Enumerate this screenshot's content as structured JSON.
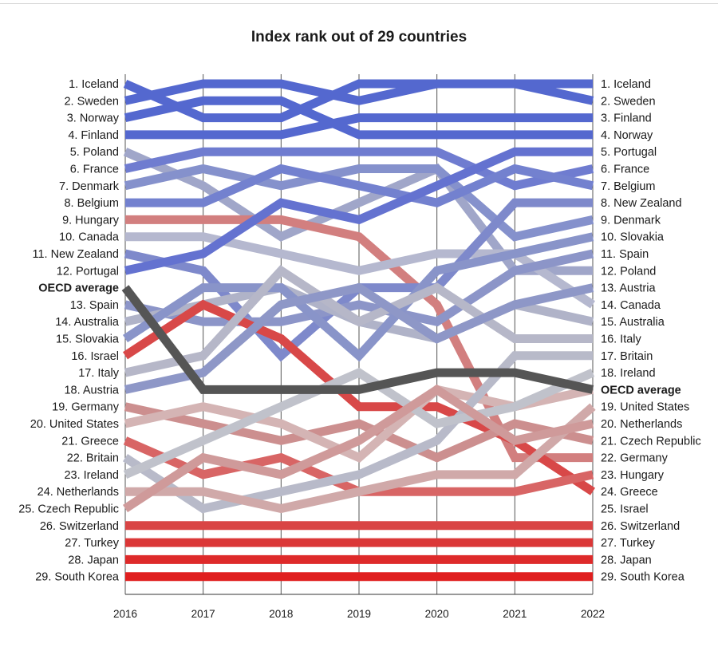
{
  "chart_data": {
    "type": "line",
    "title": "Index rank out of 29 countries",
    "x": [
      2016,
      2017,
      2018,
      2019,
      2020,
      2021,
      2022
    ],
    "y_direction": "rank 1 at top, 29 at bottom",
    "left_labels": [
      "1. Iceland",
      "2. Sweden",
      "3. Norway",
      "4. Finland",
      "5. Poland",
      "6. France",
      "7. Denmark",
      "8. Belgium",
      "9. Hungary",
      "10. Canada",
      "11. New Zealand",
      "12. Portugal",
      "OECD average",
      "13. Spain",
      "14. Australia",
      "15. Slovakia",
      "16. Israel",
      "17. Italy",
      "18. Austria",
      "19. Germany",
      "20. United States",
      "21. Greece",
      "22. Britain",
      "23. Ireland",
      "24. Netherlands",
      "25. Czech Republic",
      "26. Switzerland",
      "27. Turkey",
      "28. Japan",
      "29. South Korea"
    ],
    "right_labels": [
      "1. Iceland",
      "2. Sweden",
      "3. Finland",
      "4. Norway",
      "5. Portugal",
      "6. France",
      "7. Belgium",
      "8. New Zealand",
      "9. Denmark",
      "10. Slovakia",
      "11. Spain",
      "12. Poland",
      "13. Austria",
      "14. Canada",
      "15. Australia",
      "16. Italy",
      "17. Britain",
      "18. Ireland",
      "OECD average",
      "19. United States",
      "20. Netherlands",
      "21. Czech Republic",
      "22. Germany",
      "23. Hungary",
      "24. Greece",
      "25. Israel",
      "26. Switzerland",
      "27. Turkey",
      "28. Japan",
      "29. South Korea"
    ],
    "series": [
      {
        "name": "Iceland",
        "values": [
          1,
          3,
          3,
          1,
          1,
          1,
          1
        ],
        "color": "#5468cf"
      },
      {
        "name": "Sweden",
        "values": [
          2,
          1,
          1,
          2,
          1,
          1,
          2
        ],
        "color": "#5468cf"
      },
      {
        "name": "Norway",
        "values": [
          3,
          2,
          2,
          4,
          4,
          4,
          4
        ],
        "color": "#5468cf"
      },
      {
        "name": "Finland",
        "values": [
          4,
          4,
          4,
          3,
          3,
          3,
          3
        ],
        "color": "#5468cf"
      },
      {
        "name": "Poland",
        "values": [
          5,
          7,
          10,
          8,
          6,
          12,
          12
        ],
        "color": "#a0a6c9"
      },
      {
        "name": "France",
        "values": [
          6,
          5,
          5,
          5,
          5,
          7,
          6
        ],
        "color": "#6f7cd0"
      },
      {
        "name": "Denmark",
        "values": [
          7,
          6,
          7,
          6,
          6,
          10,
          9
        ],
        "color": "#8591cc"
      },
      {
        "name": "Belgium",
        "values": [
          8,
          8,
          6,
          7,
          8,
          6,
          7
        ],
        "color": "#7381cf"
      },
      {
        "name": "Hungary",
        "values": [
          9,
          9,
          9,
          10,
          14,
          23,
          23
        ],
        "color": "#d27f7f"
      },
      {
        "name": "Canada",
        "values": [
          10,
          10,
          11,
          12,
          11,
          11,
          14
        ],
        "color": "#b5b8cf"
      },
      {
        "name": "New Zealand",
        "values": [
          11,
          12,
          17,
          13,
          13,
          8,
          8
        ],
        "color": "#7e89cb"
      },
      {
        "name": "Portugal",
        "values": [
          12,
          11,
          8,
          9,
          7,
          5,
          5
        ],
        "color": "#6472d0"
      },
      {
        "name": "OECD average",
        "values": [
          13,
          19,
          19,
          19,
          18,
          18,
          19
        ],
        "color": "#555555"
      },
      {
        "name": "Spain",
        "values": [
          14,
          15,
          15,
          14,
          15,
          12,
          11
        ],
        "color": "#8c95c8"
      },
      {
        "name": "Australia",
        "values": [
          15,
          14,
          13,
          15,
          16,
          14,
          15
        ],
        "color": "#b0b3c8"
      },
      {
        "name": "Slovakia",
        "values": [
          16,
          13,
          13,
          17,
          12,
          11,
          10
        ],
        "color": "#8994c9"
      },
      {
        "name": "Israel",
        "values": [
          17,
          14,
          16,
          20,
          20,
          22,
          25
        ],
        "color": "#d84848"
      },
      {
        "name": "Italy",
        "values": [
          18,
          17,
          12,
          15,
          13,
          16,
          16
        ],
        "color": "#b6b7c8"
      },
      {
        "name": "Austria",
        "values": [
          19,
          18,
          14,
          13,
          16,
          14,
          13
        ],
        "color": "#8e97c7"
      },
      {
        "name": "Germany",
        "values": [
          20,
          21,
          22,
          21,
          23,
          21,
          22
        ],
        "color": "#cc8f8f"
      },
      {
        "name": "United States",
        "values": [
          21,
          20,
          21,
          23,
          19,
          20,
          19
        ],
        "color": "#d4b4b4"
      },
      {
        "name": "Greece",
        "values": [
          22,
          24,
          23,
          25,
          25,
          25,
          24
        ],
        "color": "#d86565"
      },
      {
        "name": "Britain",
        "values": [
          23,
          26,
          25,
          24,
          22,
          17,
          17
        ],
        "color": "#b8bac9"
      },
      {
        "name": "Ireland",
        "values": [
          24,
          22,
          20,
          18,
          21,
          20,
          18
        ],
        "color": "#c0c2cb"
      },
      {
        "name": "Netherlands",
        "values": [
          25,
          25,
          26,
          25,
          24,
          24,
          20
        ],
        "color": "#d0a9a9"
      },
      {
        "name": "Czech Republic",
        "values": [
          26,
          23,
          24,
          22,
          19,
          22,
          21
        ],
        "color": "#cf9a9a"
      },
      {
        "name": "Switzerland",
        "values": [
          27,
          27,
          27,
          27,
          27,
          27,
          27
        ],
        "color": "#d94545"
      },
      {
        "name": "Turkey",
        "values": [
          28,
          28,
          28,
          28,
          28,
          28,
          28
        ],
        "color": "#db3737"
      },
      {
        "name": "Japan",
        "values": [
          29,
          29,
          29,
          29,
          29,
          29,
          29
        ],
        "color": "#de2a2a"
      },
      {
        "name": "South Korea",
        "values": [
          30,
          30,
          30,
          30,
          30,
          30,
          30
        ],
        "color": "#e01f1f"
      }
    ]
  }
}
